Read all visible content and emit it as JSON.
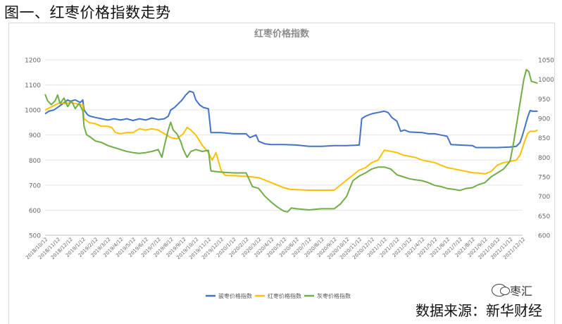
{
  "caption": "图一、红枣价格指数走势",
  "source_text": "数据来源：新华财经",
  "watermark_text": "枣汇",
  "chart_data": {
    "type": "line",
    "title": "红枣价格指数",
    "y_left": {
      "min": 500,
      "max": 1200,
      "ticks": [
        500,
        600,
        700,
        800,
        900,
        1000,
        1100,
        1200
      ]
    },
    "y_right": {
      "min": 600,
      "max": 1050,
      "ticks": [
        600,
        650,
        700,
        750,
        800,
        850,
        900,
        950,
        1000,
        1050
      ]
    },
    "x_tick_labels": [
      "2018/10/12",
      "2018/11/12",
      "2018/12/12",
      "2019/1/12",
      "2019/2/12",
      "2019/3/12",
      "2019/4/12",
      "2019/5/12",
      "2019/6/12",
      "2019/7/12",
      "2019/8/12",
      "2019/9/12",
      "2019/10/12",
      "2019/11/12",
      "2019/12/12",
      "2020/1/12",
      "2020/2/12",
      "2020/3/12",
      "2020/4/12",
      "2020/5/12",
      "2020/6/12",
      "2020/7/12",
      "2020/8/12",
      "2020/9/12",
      "2020/10/12",
      "2020/11/12",
      "2020/12/12",
      "2021/1/12",
      "2021/2/12",
      "2021/3/12",
      "2021/4/12",
      "2021/5/12",
      "2021/6/12",
      "2021/7/12",
      "2021/8/12",
      "2021/9/12",
      "2021/10/12",
      "2021/11/12",
      "2021/12/12"
    ],
    "series": [
      {
        "name": "骏枣价格指数",
        "color": "#4472c4",
        "axis": "left",
        "points": [
          [
            0,
            985
          ],
          [
            0.3,
            995
          ],
          [
            0.7,
            1000
          ],
          [
            1,
            1010
          ],
          [
            1.4,
            1025
          ],
          [
            1.8,
            1040
          ],
          [
            2,
            1035
          ],
          [
            2.4,
            1040
          ],
          [
            2.8,
            1030
          ],
          [
            3,
            1040
          ],
          [
            3.1,
            1000
          ],
          [
            3.4,
            980
          ],
          [
            3.6,
            975
          ],
          [
            4,
            970
          ],
          [
            4.5,
            965
          ],
          [
            5,
            960
          ],
          [
            5.5,
            965
          ],
          [
            6,
            960
          ],
          [
            6.5,
            965
          ],
          [
            7,
            958
          ],
          [
            7.5,
            965
          ],
          [
            8,
            960
          ],
          [
            8.5,
            968
          ],
          [
            9,
            962
          ],
          [
            9.5,
            965
          ],
          [
            9.8,
            975
          ],
          [
            10,
            1000
          ],
          [
            10.3,
            1010
          ],
          [
            10.6,
            1025
          ],
          [
            10.9,
            1040
          ],
          [
            11.2,
            1060
          ],
          [
            11.5,
            1075
          ],
          [
            11.8,
            1070
          ],
          [
            12,
            1040
          ],
          [
            12.3,
            1020
          ],
          [
            12.6,
            1010
          ],
          [
            13,
            1005
          ],
          [
            13.2,
            910
          ],
          [
            14,
            910
          ],
          [
            15,
            905
          ],
          [
            16,
            905
          ],
          [
            16.3,
            890
          ],
          [
            16.8,
            900
          ],
          [
            17,
            875
          ],
          [
            17.5,
            865
          ],
          [
            18,
            862
          ],
          [
            19,
            862
          ],
          [
            20,
            860
          ],
          [
            21,
            855
          ],
          [
            22,
            855
          ],
          [
            23,
            858
          ],
          [
            24,
            858
          ],
          [
            25,
            860
          ],
          [
            25.2,
            965
          ],
          [
            25.5,
            975
          ],
          [
            26,
            985
          ],
          [
            26.5,
            990
          ],
          [
            27,
            995
          ],
          [
            27.3,
            990
          ],
          [
            27.6,
            970
          ],
          [
            28,
            955
          ],
          [
            28.3,
            915
          ],
          [
            28.6,
            920
          ],
          [
            29,
            912
          ],
          [
            30,
            910
          ],
          [
            30.5,
            905
          ],
          [
            31,
            905
          ],
          [
            31.5,
            900
          ],
          [
            32,
            895
          ],
          [
            32.3,
            862
          ],
          [
            33,
            860
          ],
          [
            34,
            858
          ],
          [
            34.3,
            850
          ],
          [
            35,
            850
          ],
          [
            36,
            850
          ],
          [
            37,
            852
          ],
          [
            37.5,
            855
          ],
          [
            37.8,
            870
          ],
          [
            38,
            900
          ],
          [
            38.2,
            935
          ],
          [
            38.4,
            970
          ],
          [
            38.6,
            998
          ],
          [
            38.8,
            995
          ],
          [
            39.2,
            995
          ]
        ]
      },
      {
        "name": "红枣价格指数",
        "color": "#ffc000",
        "axis": "left",
        "points": [
          [
            0,
            1000
          ],
          [
            0.4,
            1010
          ],
          [
            0.8,
            1020
          ],
          [
            1.2,
            1030
          ],
          [
            1.6,
            1025
          ],
          [
            2,
            1030
          ],
          [
            2.5,
            1025
          ],
          [
            3,
            1020
          ],
          [
            3.1,
            965
          ],
          [
            3.5,
            950
          ],
          [
            4,
            945
          ],
          [
            4.5,
            935
          ],
          [
            5,
            935
          ],
          [
            5.3,
            930
          ],
          [
            5.6,
            910
          ],
          [
            6,
            905
          ],
          [
            6.5,
            910
          ],
          [
            7,
            910
          ],
          [
            7.5,
            925
          ],
          [
            8,
            920
          ],
          [
            8.5,
            925
          ],
          [
            9,
            920
          ],
          [
            9.5,
            905
          ],
          [
            10,
            890
          ],
          [
            10.5,
            885
          ],
          [
            11,
            905
          ],
          [
            11.3,
            930
          ],
          [
            11.6,
            920
          ],
          [
            12,
            900
          ],
          [
            12.5,
            860
          ],
          [
            13,
            830
          ],
          [
            13.3,
            800
          ],
          [
            13.6,
            830
          ],
          [
            14,
            760
          ],
          [
            14.3,
            740
          ],
          [
            14.6,
            738
          ],
          [
            15,
            738
          ],
          [
            16,
            735
          ],
          [
            17,
            730
          ],
          [
            17.5,
            720
          ],
          [
            18,
            710
          ],
          [
            18.5,
            700
          ],
          [
            19,
            690
          ],
          [
            19.5,
            683
          ],
          [
            20,
            682
          ],
          [
            21,
            680
          ],
          [
            22,
            680
          ],
          [
            23,
            680
          ],
          [
            23.5,
            700
          ],
          [
            24,
            720
          ],
          [
            24.5,
            740
          ],
          [
            25,
            760
          ],
          [
            25.5,
            770
          ],
          [
            26,
            790
          ],
          [
            26.5,
            800
          ],
          [
            27,
            840
          ],
          [
            27.5,
            835
          ],
          [
            28,
            830
          ],
          [
            28.5,
            820
          ],
          [
            29,
            815
          ],
          [
            29.5,
            810
          ],
          [
            30,
            800
          ],
          [
            30.5,
            795
          ],
          [
            31,
            790
          ],
          [
            31.5,
            780
          ],
          [
            32,
            770
          ],
          [
            32.5,
            765
          ],
          [
            33,
            760
          ],
          [
            33.5,
            755
          ],
          [
            34,
            750
          ],
          [
            34.5,
            748
          ],
          [
            35,
            745
          ],
          [
            35.5,
            755
          ],
          [
            36,
            780
          ],
          [
            36.5,
            790
          ],
          [
            37,
            795
          ],
          [
            37.5,
            800
          ],
          [
            37.8,
            820
          ],
          [
            38,
            850
          ],
          [
            38.2,
            880
          ],
          [
            38.4,
            905
          ],
          [
            38.6,
            915
          ],
          [
            39,
            915
          ],
          [
            39.2,
            920
          ]
        ]
      },
      {
        "name": "灰枣价格指数",
        "color": "#70ad47",
        "axis": "right",
        "points": [
          [
            0,
            962
          ],
          [
            0.2,
            945
          ],
          [
            0.5,
            935
          ],
          [
            0.8,
            945
          ],
          [
            1,
            960
          ],
          [
            1.2,
            938
          ],
          [
            1.5,
            952
          ],
          [
            1.8,
            930
          ],
          [
            2.1,
            945
          ],
          [
            2.4,
            925
          ],
          [
            2.7,
            938
          ],
          [
            3,
            920
          ],
          [
            3.1,
            880
          ],
          [
            3.3,
            858
          ],
          [
            3.6,
            852
          ],
          [
            4,
            842
          ],
          [
            4.5,
            838
          ],
          [
            5,
            830
          ],
          [
            5.5,
            825
          ],
          [
            6,
            820
          ],
          [
            6.5,
            815
          ],
          [
            7,
            812
          ],
          [
            7.5,
            810
          ],
          [
            8,
            812
          ],
          [
            8.5,
            815
          ],
          [
            9,
            820
          ],
          [
            9.3,
            800
          ],
          [
            9.5,
            830
          ],
          [
            9.8,
            870
          ],
          [
            10,
            890
          ],
          [
            10.2,
            870
          ],
          [
            10.5,
            860
          ],
          [
            10.8,
            840
          ],
          [
            11,
            820
          ],
          [
            11.3,
            800
          ],
          [
            11.6,
            815
          ],
          [
            12,
            820
          ],
          [
            12.5,
            815
          ],
          [
            13,
            818
          ],
          [
            13.2,
            765
          ],
          [
            14,
            762
          ],
          [
            15,
            760
          ],
          [
            16,
            760
          ],
          [
            16.5,
            725
          ],
          [
            17,
            720
          ],
          [
            17.5,
            700
          ],
          [
            18,
            685
          ],
          [
            18.5,
            672
          ],
          [
            19,
            662
          ],
          [
            19.3,
            660
          ],
          [
            19.6,
            670
          ],
          [
            20,
            668
          ],
          [
            21,
            665
          ],
          [
            22,
            668
          ],
          [
            23,
            668
          ],
          [
            23.5,
            680
          ],
          [
            24,
            700
          ],
          [
            24.5,
            740
          ],
          [
            25,
            752
          ],
          [
            25.5,
            760
          ],
          [
            26,
            770
          ],
          [
            26.5,
            775
          ],
          [
            27,
            775
          ],
          [
            27.5,
            770
          ],
          [
            28,
            755
          ],
          [
            28.5,
            750
          ],
          [
            29,
            745
          ],
          [
            29.5,
            742
          ],
          [
            30,
            740
          ],
          [
            30.5,
            735
          ],
          [
            31,
            728
          ],
          [
            31.5,
            725
          ],
          [
            32,
            720
          ],
          [
            32.5,
            718
          ],
          [
            33,
            715
          ],
          [
            33.5,
            720
          ],
          [
            34,
            722
          ],
          [
            34.5,
            730
          ],
          [
            35,
            735
          ],
          [
            35.5,
            750
          ],
          [
            36,
            760
          ],
          [
            36.5,
            770
          ],
          [
            37,
            790
          ],
          [
            37.3,
            840
          ],
          [
            37.6,
            900
          ],
          [
            37.9,
            960
          ],
          [
            38.1,
            1000
          ],
          [
            38.3,
            1025
          ],
          [
            38.5,
            1020
          ],
          [
            38.7,
            995
          ],
          [
            39,
            992
          ],
          [
            39.2,
            990
          ]
        ]
      }
    ]
  }
}
